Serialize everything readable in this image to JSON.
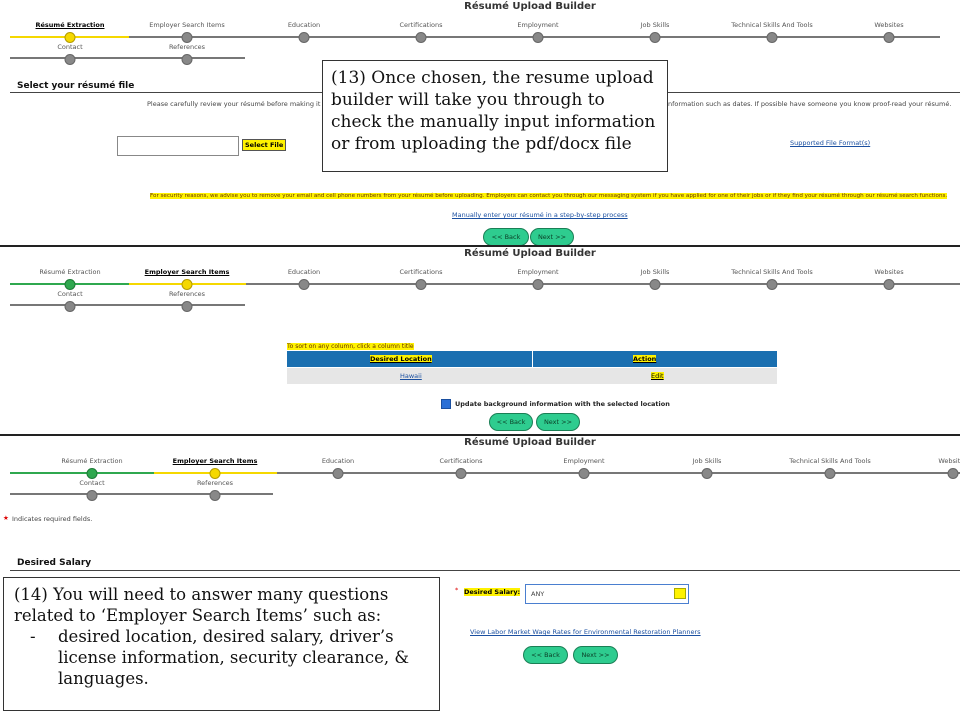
{
  "panels": [
    {
      "title": "Résumé Upload Builder",
      "steps": [
        "Résumé Extraction",
        "Employer Search Items",
        "Education",
        "Certifications",
        "Employment",
        "Job Skills",
        "Technical Skills And Tools",
        "Websites",
        "Contact",
        "References"
      ],
      "section_heading": "Select your résumé file",
      "instruction_left": "Please carefully review your résumé before making it avai",
      "instruction_right": "nformation such as dates. If possible have someone you know proof-read your résumé.",
      "select_button": "Select File",
      "formats_link": "Supported File Format(s)",
      "security_notice": "For security reasons, we advise you to remove your email and cell phone numbers from your résumé before uploading. Employers can contact you through our messaging system if you have applied for one of their jobs or if they find your résumé through our résumé search functions.",
      "manual_link": "Manually enter your résumé in a step-by-step process",
      "back": "<< Back",
      "next": "Next >>",
      "callout": "(13) Once chosen, the resume upload builder will take you through to check the manually input information or from uploading the pdf/docx file"
    },
    {
      "title": "Résumé Upload Builder",
      "steps": [
        "Résumé Extraction",
        "Employer Search Items",
        "Education",
        "Certifications",
        "Employment",
        "Job Skills",
        "Technical Skills And Tools",
        "Websites",
        "Contact",
        "References"
      ],
      "sort_hint": "To sort on any column, click a column title",
      "table": {
        "headers": [
          "Desired Location",
          "Action"
        ],
        "rows": [
          [
            "Hawaii",
            "Edit"
          ]
        ]
      },
      "checkbox_label": "Update background information with the selected location",
      "back": "<< Back",
      "next": "Next >>"
    },
    {
      "title": "Résumé Upload Builder",
      "steps": [
        "Résumé Extraction",
        "Employer Search Items",
        "Education",
        "Certifications",
        "Employment",
        "Job Skills",
        "Technical Skills And Tools",
        "Websites",
        "Contact",
        "References"
      ],
      "required_note": "Indicates required fields.",
      "section_heading": "Desired Salary",
      "salary_label": "Desired Salary:",
      "salary_value": "ANY",
      "wage_link": "View Labor Market Wage Rates for Environmental Restoration Planners",
      "back": "<< Back",
      "next": "Next >>",
      "callout": "(14) You will need to answer many questions related to ‘Employer Search Items’ such as:",
      "callout_bullet": "desired location, desired salary, driver’s license information, security clearance, & languages."
    }
  ]
}
